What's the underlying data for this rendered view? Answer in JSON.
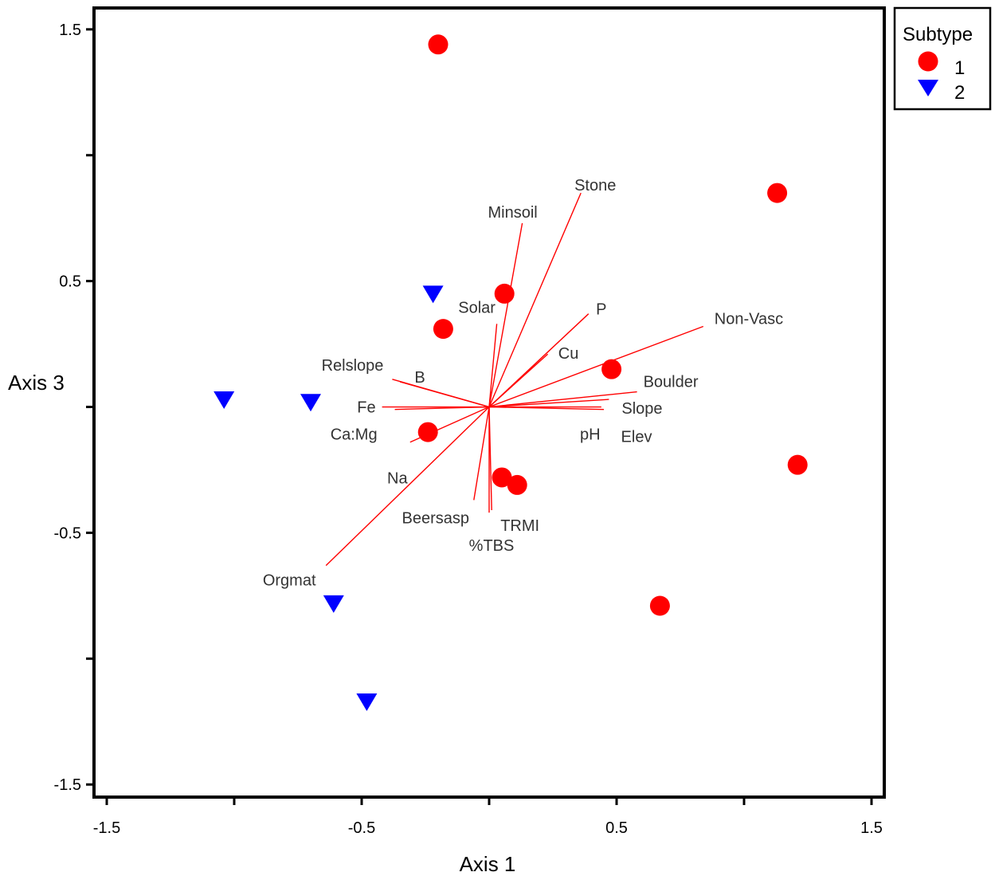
{
  "chart_data": {
    "type": "scatter",
    "title": "",
    "xlabel": "Axis 1",
    "ylabel": "Axis 3",
    "xlim": [
      -1.55,
      1.55
    ],
    "ylim": [
      -1.55,
      1.585
    ],
    "x_ticks": [
      -1.5,
      -1.0,
      -0.5,
      0.0,
      0.5,
      1.0,
      1.5
    ],
    "x_tick_labels": [
      "-1.5",
      "",
      "-0.5",
      "",
      "0.5",
      "",
      "1.5"
    ],
    "y_ticks": [
      -1.5,
      -1.0,
      -0.5,
      0.0,
      0.5,
      1.0,
      1.5
    ],
    "y_tick_labels": [
      "-1.5",
      "",
      "-0.5",
      "",
      "0.5",
      "",
      "1.5"
    ],
    "grid": false,
    "legend": {
      "title": "Subtype",
      "position": "top-right-outside",
      "entries": [
        {
          "label": "1",
          "marker": "circle",
          "color": "#ff0000"
        },
        {
          "label": "2",
          "marker": "triangle-down",
          "color": "#0000ff"
        }
      ]
    },
    "series": [
      {
        "name": "1",
        "marker": "circle",
        "color": "#ff0000",
        "points": [
          {
            "x": -0.2,
            "y": 1.44
          },
          {
            "x": 1.13,
            "y": 0.85
          },
          {
            "x": 0.06,
            "y": 0.45
          },
          {
            "x": -0.18,
            "y": 0.31
          },
          {
            "x": 0.48,
            "y": 0.15
          },
          {
            "x": -0.24,
            "y": -0.1
          },
          {
            "x": 1.21,
            "y": -0.23
          },
          {
            "x": 0.05,
            "y": -0.28
          },
          {
            "x": 0.11,
            "y": -0.31
          },
          {
            "x": 0.67,
            "y": -0.79
          }
        ]
      },
      {
        "name": "2",
        "marker": "triangle-down",
        "color": "#0000ff",
        "points": [
          {
            "x": -0.22,
            "y": 0.45
          },
          {
            "x": -1.04,
            "y": 0.03
          },
          {
            "x": -0.7,
            "y": 0.02
          },
          {
            "x": -0.61,
            "y": -0.78
          },
          {
            "x": -0.48,
            "y": -1.17
          }
        ]
      }
    ],
    "vectors": {
      "color": "#ff0000",
      "items": [
        {
          "label": "Stone",
          "x": 0.36,
          "y": 0.85
        },
        {
          "label": "Minsoil",
          "x": 0.13,
          "y": 0.73
        },
        {
          "label": "P",
          "x": 0.39,
          "y": 0.37
        },
        {
          "label": "Non-Vasc",
          "x": 0.84,
          "y": 0.32
        },
        {
          "label": "Solar",
          "x": 0.03,
          "y": 0.33
        },
        {
          "label": "Cu",
          "x": 0.23,
          "y": 0.21
        },
        {
          "label": "Boulder",
          "x": 0.58,
          "y": 0.06
        },
        {
          "label": "Slope",
          "x": 0.47,
          "y": 0.03
        },
        {
          "label": "pH",
          "x": 0.44,
          "y": 0.0
        },
        {
          "label": "Elev",
          "x": 0.45,
          "y": -0.01
        },
        {
          "label": "Relslope",
          "x": -0.38,
          "y": 0.11
        },
        {
          "label": "B",
          "x": -0.35,
          "y": 0.1
        },
        {
          "label": "Fe",
          "x": -0.42,
          "y": 0.0
        },
        {
          "label": "Ca:Mg",
          "x": -0.37,
          "y": -0.01
        },
        {
          "label": "Na",
          "x": -0.31,
          "y": -0.14
        },
        {
          "label": "Beersasp",
          "x": -0.06,
          "y": -0.37
        },
        {
          "label": "TRMI",
          "x": 0.01,
          "y": -0.41
        },
        {
          "label": "%TBS",
          "x": 0.0,
          "y": -0.42
        },
        {
          "label": "Orgmat",
          "x": -0.64,
          "y": -0.63
        }
      ]
    }
  }
}
